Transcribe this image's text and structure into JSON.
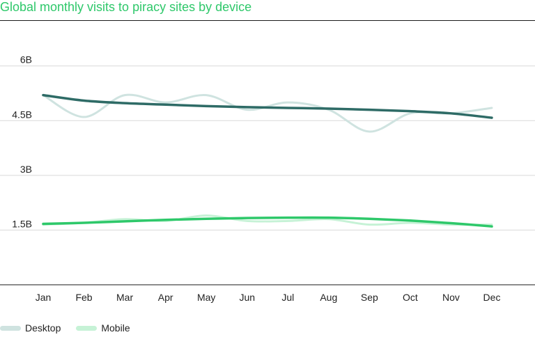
{
  "title": "Global monthly visits to piracy sites by device",
  "chart_data": {
    "type": "line",
    "categories": [
      "Jan",
      "Feb",
      "Mar",
      "Apr",
      "May",
      "Jun",
      "Jul",
      "Aug",
      "Sep",
      "Oct",
      "Nov",
      "Dec"
    ],
    "y_ticks": [
      {
        "value": 6.0,
        "label": "6B"
      },
      {
        "value": 4.5,
        "label": "4.5B"
      },
      {
        "value": 3.0,
        "label": "3B"
      },
      {
        "value": 1.5,
        "label": "1.5B"
      }
    ],
    "ylim": [
      0,
      6.3
    ],
    "unit": "billions",
    "grid": true,
    "legend_position": "bottom-left",
    "series": [
      {
        "name": "Desktop",
        "color": "#cfe3e0",
        "values": [
          5.2,
          4.6,
          5.2,
          5.0,
          5.2,
          4.8,
          5.0,
          4.8,
          4.2,
          4.7,
          4.7,
          4.85
        ]
      },
      {
        "name": "Mobile",
        "color": "#c6f2d6",
        "values": [
          1.65,
          1.7,
          1.8,
          1.75,
          1.9,
          1.75,
          1.75,
          1.8,
          1.65,
          1.7,
          1.65,
          1.65
        ]
      }
    ],
    "trendlines": [
      {
        "series": "Desktop",
        "color": "#2e6b66",
        "values": [
          5.2,
          5.05,
          4.98,
          4.94,
          4.9,
          4.87,
          4.85,
          4.83,
          4.8,
          4.76,
          4.7,
          4.58
        ]
      },
      {
        "series": "Mobile",
        "color": "#2ec86a",
        "values": [
          1.67,
          1.7,
          1.74,
          1.78,
          1.81,
          1.83,
          1.84,
          1.84,
          1.81,
          1.76,
          1.69,
          1.6
        ]
      }
    ]
  }
}
